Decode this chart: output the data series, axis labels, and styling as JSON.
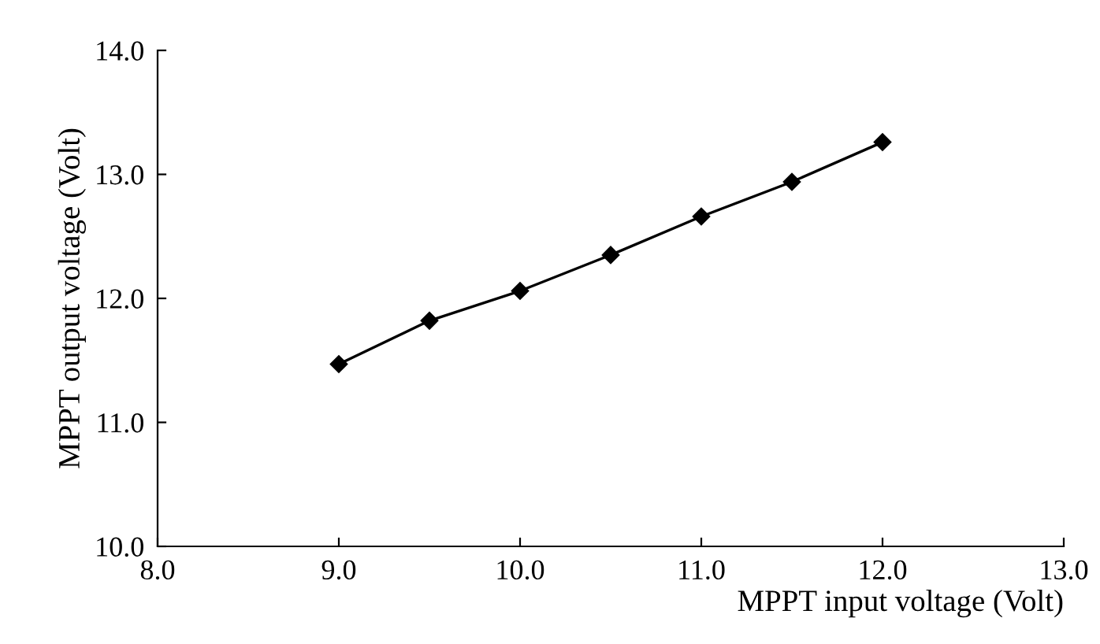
{
  "chart_data": {
    "type": "line",
    "xlabel": "MPPT input voltage (Volt)",
    "ylabel": "MPPT output voltage (Volt)",
    "x": [
      9.0,
      9.5,
      10.0,
      10.5,
      11.0,
      11.5,
      12.0
    ],
    "series": [
      {
        "color": "#000000",
        "values": [
          11.47,
          11.82,
          12.06,
          12.35,
          12.66,
          12.94,
          13.26
        ]
      }
    ],
    "xlim": [
      8.0,
      13.0
    ],
    "xticks": [
      {
        "value": 8.0,
        "label": "8.0"
      },
      {
        "value": 9.0,
        "label": "9.0"
      },
      {
        "value": 10.0,
        "label": "10.0"
      },
      {
        "value": 11.0,
        "label": "11.0"
      },
      {
        "value": 12.0,
        "label": "12.0"
      },
      {
        "value": 13.0,
        "label": "13.0"
      }
    ],
    "ylim": [
      10.0,
      14.0
    ],
    "yticks": [
      {
        "value": 10.0,
        "label": "10.0"
      },
      {
        "value": 11.0,
        "label": "11.0"
      },
      {
        "value": 12.0,
        "label": "12.0"
      },
      {
        "value": 13.0,
        "label": "13.0"
      },
      {
        "value": 14.0,
        "label": "14.0"
      }
    ],
    "marker": "diamond",
    "line_style": "solid",
    "grid": false,
    "legend": false
  }
}
